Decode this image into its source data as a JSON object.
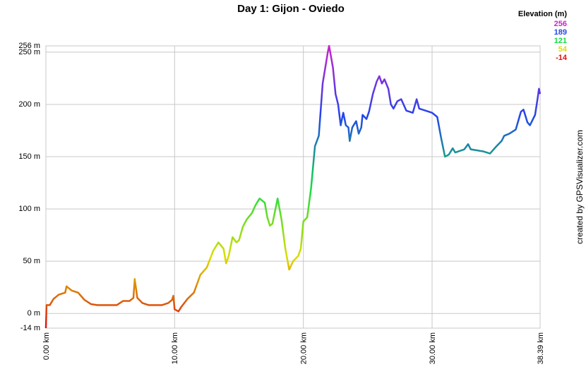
{
  "chart_data": {
    "type": "line",
    "title": "Day 1: Gijon - Oviedo",
    "x": [
      0,
      0.05,
      0.3,
      0.6,
      1.0,
      1.5,
      1.6,
      2.0,
      2.5,
      3.0,
      3.5,
      4.0,
      5.0,
      5.5,
      6.0,
      6.5,
      6.8,
      6.9,
      7.1,
      7.5,
      8.0,
      8.5,
      9.0,
      9.5,
      9.8,
      9.9,
      10.0,
      10.3,
      10.5,
      11.0,
      11.5,
      12.0,
      12.5,
      13.0,
      13.4,
      13.8,
      14.0,
      14.2,
      14.5,
      14.8,
      15.0,
      15.3,
      15.6,
      16.0,
      16.3,
      16.6,
      17.0,
      17.2,
      17.4,
      17.6,
      17.8,
      18.0,
      18.3,
      18.6,
      18.9,
      19.2,
      19.6,
      19.8,
      20.0,
      20.3,
      20.6,
      20.9,
      21.2,
      21.5,
      21.9,
      22.0,
      22.3,
      22.5,
      22.7,
      22.9,
      23.1,
      23.3,
      23.5,
      23.6,
      23.8,
      24.1,
      24.3,
      24.5,
      24.6,
      24.9,
      25.1,
      25.4,
      25.7,
      25.9,
      26.1,
      26.3,
      26.6,
      26.8,
      27.0,
      27.3,
      27.6,
      28.0,
      28.5,
      28.8,
      29.0,
      29.5,
      30.0,
      30.4,
      30.7,
      31.0,
      31.3,
      31.6,
      31.8,
      32.5,
      32.8,
      33.0,
      34.0,
      34.5,
      35.0,
      35.4,
      35.6,
      36.0,
      36.5,
      36.9,
      37.1,
      37.4,
      37.6,
      38.0,
      38.2,
      38.3,
      38.39
    ],
    "values": [
      -14,
      8,
      8,
      14,
      18,
      20,
      26,
      22,
      20,
      13,
      9,
      8,
      8,
      8,
      12,
      12,
      15,
      33,
      15,
      10,
      8,
      8,
      8,
      10,
      13,
      17,
      4,
      2,
      6,
      14,
      20,
      37,
      44,
      60,
      68,
      62,
      48,
      55,
      73,
      68,
      70,
      83,
      90,
      96,
      104,
      110,
      106,
      92,
      84,
      86,
      98,
      110,
      90,
      62,
      42,
      50,
      55,
      62,
      88,
      92,
      120,
      160,
      170,
      220,
      250,
      256,
      235,
      210,
      200,
      180,
      192,
      180,
      178,
      165,
      178,
      184,
      172,
      178,
      190,
      186,
      193,
      210,
      222,
      227,
      220,
      224,
      215,
      200,
      196,
      203,
      205,
      194,
      192,
      205,
      196,
      194,
      192,
      188,
      168,
      150,
      152,
      158,
      154,
      157,
      162,
      157,
      155,
      153,
      160,
      165,
      170,
      172,
      176,
      193,
      195,
      183,
      180,
      190,
      206,
      215,
      210
    ],
    "xlim": [
      0,
      38.39
    ],
    "xticks": [
      {
        "value": 0,
        "label": "0.00 km"
      },
      {
        "value": 10,
        "label": "10.00 km"
      },
      {
        "value": 20,
        "label": "20.00 km"
      },
      {
        "value": 30,
        "label": "30.00 km"
      },
      {
        "value": 38.39,
        "label": "38.39 km"
      }
    ],
    "ylim": [
      -14,
      256
    ],
    "yticks": [
      {
        "value": -14,
        "label": "-14 m"
      },
      {
        "value": 0,
        "label": "0 m"
      },
      {
        "value": 50,
        "label": "50 m"
      },
      {
        "value": 100,
        "label": "100 m"
      },
      {
        "value": 150,
        "label": "150 m"
      },
      {
        "value": 200,
        "label": "200 m"
      },
      {
        "value": 250,
        "label": "250 m"
      },
      {
        "value": 256,
        "label": "256 m"
      }
    ],
    "grid": true,
    "legend_title": "Elevation (m)",
    "color_scale": [
      {
        "value": 256,
        "color": "#cc22cc"
      },
      {
        "value": 189,
        "color": "#2244ee"
      },
      {
        "value": 121,
        "color": "#11dd44"
      },
      {
        "value": 54,
        "color": "#dddd00"
      },
      {
        "value": -14,
        "color": "#dd1111"
      }
    ],
    "credit": "created by GPSVisualizer.com"
  }
}
